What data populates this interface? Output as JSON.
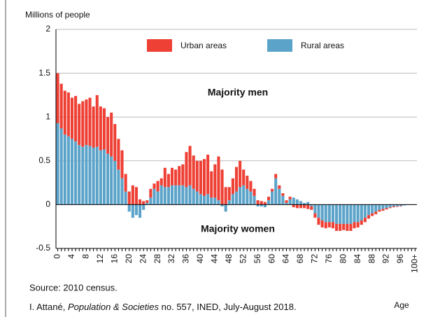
{
  "chart_data": {
    "type": "bar",
    "stacked": true,
    "y_label": "Millions of people",
    "x_label": "Age",
    "annotations": [
      "Majority men",
      "Majority women"
    ],
    "source": "Source: 2010 census.",
    "credit": [
      "I. Attané, ",
      "Population & Societies",
      " no. 557, INED, July-August 2018."
    ],
    "categories": [
      "0",
      null,
      null,
      null,
      "4",
      null,
      null,
      null,
      "8",
      null,
      null,
      null,
      "12",
      null,
      null,
      null,
      "16",
      null,
      null,
      null,
      "20",
      null,
      null,
      null,
      "24",
      null,
      null,
      null,
      "28",
      null,
      null,
      null,
      "32",
      null,
      null,
      null,
      "36",
      null,
      null,
      null,
      "40",
      null,
      null,
      null,
      "44",
      null,
      null,
      null,
      "48",
      null,
      null,
      null,
      "52",
      null,
      null,
      null,
      "56",
      null,
      null,
      null,
      "60",
      null,
      null,
      null,
      "64",
      null,
      null,
      null,
      "68",
      null,
      null,
      null,
      "72",
      null,
      null,
      null,
      "76",
      null,
      null,
      null,
      "80",
      null,
      null,
      null,
      "84",
      null,
      null,
      null,
      "88",
      null,
      null,
      null,
      "92",
      null,
      null,
      null,
      "96",
      null,
      null,
      null,
      "100+"
    ],
    "series": [
      {
        "name": "Rural areas",
        "color": "#5ba3c9",
        "values": [
          0.93,
          0.87,
          0.8,
          0.78,
          0.75,
          0.72,
          0.68,
          0.66,
          0.68,
          0.67,
          0.65,
          0.66,
          0.62,
          0.63,
          0.58,
          0.55,
          0.5,
          0.4,
          0.3,
          0.15,
          -0.08,
          -0.15,
          -0.12,
          -0.15,
          -0.06,
          0.02,
          0.08,
          0.18,
          0.15,
          0.22,
          0.2,
          0.2,
          0.22,
          0.22,
          0.22,
          0.22,
          0.2,
          0.22,
          0.18,
          0.15,
          0.12,
          0.1,
          0.12,
          0.08,
          0.08,
          0.05,
          -0.02,
          -0.08,
          0.05,
          0.12,
          0.15,
          0.2,
          0.22,
          0.18,
          0.15,
          0.1,
          -0.02,
          -0.02,
          -0.03,
          0.05,
          0.15,
          0.3,
          0.18,
          0.1,
          0.02,
          0.06,
          0.08,
          0.06,
          0.04,
          0.02,
          0.03,
          -0.02,
          -0.1,
          -0.15,
          -0.18,
          -0.2,
          -0.2,
          -0.2,
          -0.22,
          -0.22,
          -0.22,
          -0.22,
          -0.22,
          -0.2,
          -0.2,
          -0.18,
          -0.15,
          -0.12,
          -0.1,
          -0.08,
          -0.06,
          -0.05,
          -0.04,
          -0.03,
          -0.02,
          -0.02,
          -0.015,
          -0.01,
          -0.005,
          -0.003,
          -0.005
        ]
      },
      {
        "name": "Urban areas",
        "color": "#ee4035",
        "values": [
          0.57,
          0.51,
          0.5,
          0.5,
          0.47,
          0.52,
          0.47,
          0.52,
          0.52,
          0.55,
          0.47,
          0.59,
          0.5,
          0.47,
          0.42,
          0.5,
          0.42,
          0.35,
          0.32,
          0.2,
          0.15,
          0.22,
          0.2,
          0.06,
          0.04,
          0.03,
          0.1,
          0.06,
          0.12,
          0.08,
          0.22,
          0.15,
          0.2,
          0.18,
          0.22,
          0.24,
          0.4,
          0.45,
          0.38,
          0.35,
          0.38,
          0.42,
          0.45,
          0.3,
          0.38,
          0.5,
          0.4,
          0.2,
          0.15,
          0.18,
          0.28,
          0.3,
          0.18,
          0.15,
          0.12,
          0.08,
          0.05,
          0.04,
          0.03,
          0.04,
          0.03,
          0.05,
          0.04,
          0.03,
          0.03,
          0.03,
          -0.03,
          -0.04,
          -0.04,
          -0.04,
          -0.05,
          -0.04,
          -0.05,
          -0.08,
          -0.08,
          -0.07,
          -0.06,
          -0.07,
          -0.08,
          -0.08,
          -0.07,
          -0.08,
          -0.08,
          -0.07,
          -0.06,
          -0.05,
          -0.05,
          -0.04,
          -0.03,
          -0.03,
          -0.02,
          -0.02,
          -0.015,
          -0.01,
          -0.01,
          -0.005,
          -0.005,
          0,
          0,
          0,
          0
        ]
      }
    ],
    "ylim": [
      -0.5,
      2
    ],
    "yticks": [
      -0.5,
      0,
      0.5,
      1,
      1.5,
      2
    ],
    "grid": true
  }
}
